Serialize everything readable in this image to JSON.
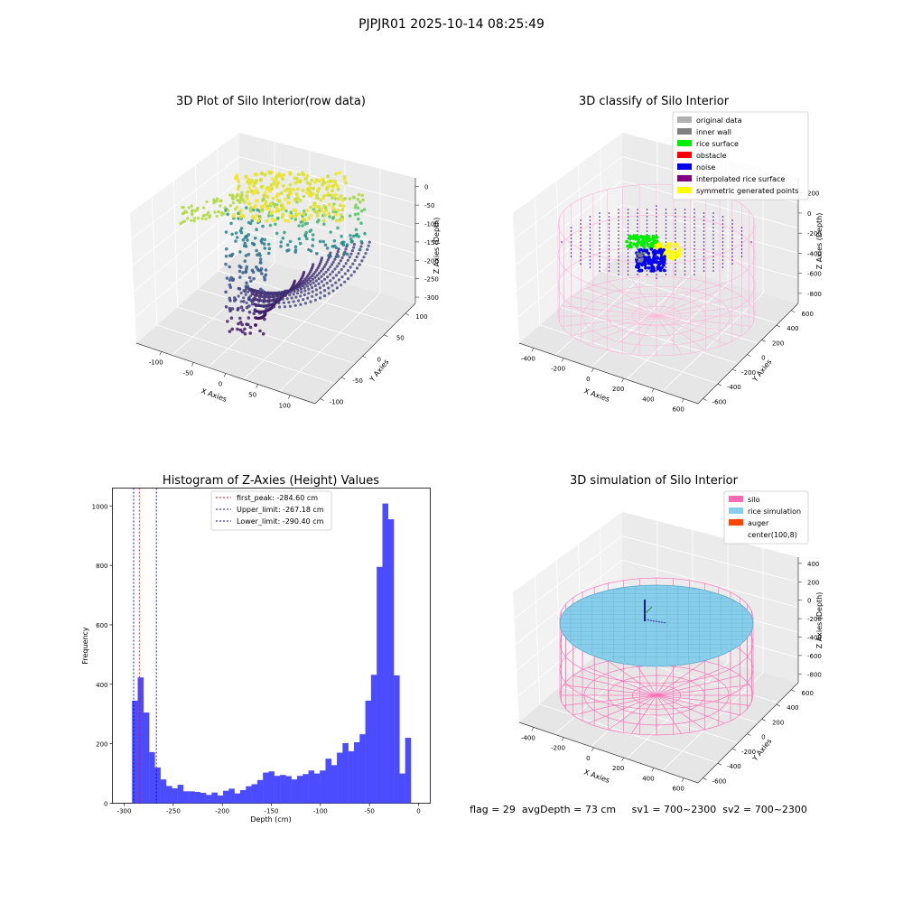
{
  "suptitle": "PJPJR01 2025-10-14 08:25:49",
  "status_line": "flag = 29  avgDepth = 73 cm     sv1 = 700~2300  sv2 = 700~2300",
  "colors": {
    "viridis": [
      "#440154",
      "#3b528b",
      "#21918c",
      "#5ec962",
      "#fde725"
    ],
    "hist_bar": "#4b4bff",
    "first_peak": "#ff0000",
    "limits": "#0000cc",
    "silo_light": "#ffb3d9",
    "silo": "#ff69b4",
    "rice_grid": "#4b0082",
    "rice_sim": "#87ceeb"
  },
  "chart_data": [
    {
      "type": "scatter",
      "subtype": "3d",
      "title": "3D Plot of Silo Interior(row data)",
      "xlabel": "X Axies",
      "ylabel": "Y Axies",
      "zlabel": "Z Axies (Depth)",
      "x_ticks": [
        "-100",
        "-50",
        "0",
        "50",
        "100"
      ],
      "y_ticks": [
        "-100",
        "-50",
        "0",
        "50",
        "100"
      ],
      "z_ticks": [
        "0",
        "-50",
        "-100",
        "-150",
        "-200",
        "-250",
        "-300"
      ],
      "colormap": "viridis"
    },
    {
      "type": "scatter",
      "subtype": "3d",
      "title": "3D classify of Silo Interior",
      "xlabel": "X Axies",
      "ylabel": "Y Axies",
      "zlabel": "Z Axies (Depth)",
      "x_ticks": [
        "-400",
        "-200",
        "0",
        "200",
        "400",
        "600"
      ],
      "y_ticks": [
        "-600",
        "-400",
        "-200",
        "0",
        "200",
        "400",
        "600"
      ],
      "z_ticks": [
        "200",
        "0",
        "-200",
        "-400",
        "-600",
        "-800"
      ],
      "legend": [
        {
          "label": "original data",
          "color": "#b0b0b0"
        },
        {
          "label": "inner wall",
          "color": "#808080"
        },
        {
          "label": "rice surface",
          "color": "#00ee00"
        },
        {
          "label": "obstacle",
          "color": "#ff0000"
        },
        {
          "label": "noise",
          "color": "#0000ee"
        },
        {
          "label": "interpolated rice surface",
          "color": "#800080"
        },
        {
          "label": "symmetric generated points",
          "color": "#ffff00"
        }
      ],
      "legend_loc": "upper right"
    },
    {
      "type": "bar",
      "subtype": "histogram",
      "title": "Histogram of Z-Axies (Height) Values",
      "xlabel": "Depth (cm)",
      "ylabel": "Frequency",
      "xlim": [
        -300,
        0
      ],
      "ylim": [
        0,
        1060
      ],
      "x_ticks": [
        "-300",
        "-250",
        "-200",
        "-150",
        "-100",
        "-50",
        "0"
      ],
      "y_ticks": [
        "0",
        "200",
        "400",
        "600",
        "800",
        "1000"
      ],
      "bin_width": 5.8,
      "bin_start": -292,
      "values": [
        345,
        423,
        305,
        172,
        120,
        80,
        58,
        50,
        62,
        40,
        40,
        38,
        35,
        28,
        36,
        26,
        42,
        49,
        33,
        44,
        57,
        64,
        78,
        103,
        107,
        92,
        95,
        91,
        80,
        92,
        98,
        110,
        100,
        110,
        150,
        128,
        170,
        202,
        175,
        205,
        232,
        345,
        432,
        795,
        1008,
        955,
        430,
        100,
        220
      ],
      "lines": [
        {
          "label": "first_peak: -284.60 cm",
          "x": -284.6,
          "color": "#ff0000"
        },
        {
          "label": "Upper_limit: -267.18 cm",
          "x": -267.18,
          "color": "#0000cc"
        },
        {
          "label": "Lower_limit: -290.40 cm",
          "x": -290.4,
          "color": "#0000cc"
        }
      ],
      "legend_loc": "upper center"
    },
    {
      "type": "scatter",
      "subtype": "3d",
      "title": "3D simulation of Silo Interior",
      "xlabel": "X Axies",
      "ylabel": "Y Axies",
      "zlabel": "Z Axies (Depth)",
      "x_ticks": [
        "-400",
        "-200",
        "0",
        "200",
        "400",
        "600"
      ],
      "y_ticks": [
        "-600",
        "-400",
        "-200",
        "0",
        "200",
        "400",
        "600"
      ],
      "z_ticks": [
        "400",
        "200",
        "0",
        "-200",
        "-400",
        "-600",
        "-800"
      ],
      "legend": [
        {
          "label": "silo",
          "color": "#ff69b4"
        },
        {
          "label": "rice simulation",
          "color": "#87ceeb"
        },
        {
          "label": "auger",
          "color": "#ff4500"
        },
        {
          "label": "center(100,8)",
          "color": "#ffffff"
        }
      ],
      "legend_loc": "upper right"
    }
  ]
}
